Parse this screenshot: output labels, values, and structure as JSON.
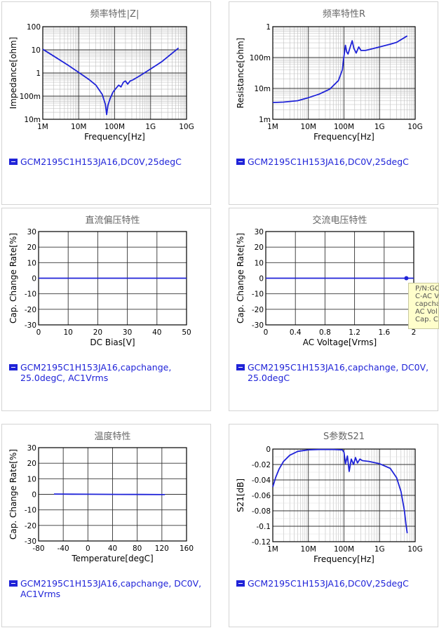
{
  "charts": [
    {
      "id": "c1",
      "title": "频率特性|Z|",
      "xlabel": "Frequency[Hz]",
      "ylabel": "Impedance[ohm]",
      "xscale": "log",
      "yscale": "log",
      "xlim": [
        1000000,
        10000000000
      ],
      "ylim": [
        0.01,
        100
      ],
      "xticks": [
        {
          "v": 1000000,
          "l": "1M"
        },
        {
          "v": 10000000,
          "l": "10M"
        },
        {
          "v": 100000000,
          "l": "100M"
        },
        {
          "v": 1000000000,
          "l": "1G"
        },
        {
          "v": 10000000000,
          "l": "10G"
        }
      ],
      "yticks": [
        {
          "v": 0.01,
          "l": "10m"
        },
        {
          "v": 0.1,
          "l": "100m"
        },
        {
          "v": 1,
          "l": "1"
        },
        {
          "v": 10,
          "l": "10"
        },
        {
          "v": 100,
          "l": "100"
        }
      ],
      "legend": "GCM2195C1H153JA16,DC0V,25degC"
    },
    {
      "id": "c2",
      "title": "频率特性R",
      "xlabel": "Frequency[Hz]",
      "ylabel": "Resistance[ohm]",
      "xscale": "log",
      "yscale": "log",
      "xlim": [
        1000000,
        10000000000
      ],
      "ylim": [
        0.001,
        1
      ],
      "xticks": [
        {
          "v": 1000000,
          "l": "1M"
        },
        {
          "v": 10000000,
          "l": "10M"
        },
        {
          "v": 100000000,
          "l": "100M"
        },
        {
          "v": 1000000000,
          "l": "1G"
        },
        {
          "v": 10000000000,
          "l": "10G"
        }
      ],
      "yticks": [
        {
          "v": 0.001,
          "l": "1m"
        },
        {
          "v": 0.01,
          "l": "10m"
        },
        {
          "v": 0.1,
          "l": "100m"
        },
        {
          "v": 1,
          "l": "1"
        }
      ],
      "legend": "GCM2195C1H153JA16,DC0V,25degC"
    },
    {
      "id": "c3",
      "title": "直流偏压特性",
      "xlabel": "DC Bias[V]",
      "ylabel": "Cap. Change Rate[%]",
      "xscale": "linear",
      "yscale": "linear",
      "xlim": [
        0,
        50
      ],
      "ylim": [
        -30,
        30
      ],
      "xticks": [
        {
          "v": 0,
          "l": "0"
        },
        {
          "v": 10,
          "l": "10"
        },
        {
          "v": 20,
          "l": "20"
        },
        {
          "v": 30,
          "l": "30"
        },
        {
          "v": 40,
          "l": "40"
        },
        {
          "v": 50,
          "l": "50"
        }
      ],
      "yticks": [
        {
          "v": -30,
          "l": "-30"
        },
        {
          "v": -20,
          "l": "-20"
        },
        {
          "v": -10,
          "l": "-10"
        },
        {
          "v": 0,
          "l": "0"
        },
        {
          "v": 10,
          "l": "10"
        },
        {
          "v": 20,
          "l": "20"
        },
        {
          "v": 30,
          "l": "30"
        }
      ],
      "legend": "GCM2195C1H153JA16,capchange, 25.0degC, AC1Vrms"
    },
    {
      "id": "c4",
      "title": "交流电压特性",
      "xlabel": "AC Voltage[Vrms]",
      "ylabel": "Cap. Change Rate[%]",
      "xscale": "linear",
      "yscale": "linear",
      "xlim": [
        0,
        2
      ],
      "ylim": [
        -30,
        30
      ],
      "xticks": [
        {
          "v": 0,
          "l": "0"
        },
        {
          "v": 0.4,
          "l": "0.4"
        },
        {
          "v": 0.8,
          "l": "0.8"
        },
        {
          "v": 1.2,
          "l": "1.2"
        },
        {
          "v": 1.6,
          "l": "1.6"
        },
        {
          "v": 2,
          "l": "2"
        }
      ],
      "yticks": [
        {
          "v": -30,
          "l": "-30"
        },
        {
          "v": -20,
          "l": "-20"
        },
        {
          "v": -10,
          "l": "-10"
        },
        {
          "v": 0,
          "l": "0"
        },
        {
          "v": 10,
          "l": "10"
        },
        {
          "v": 20,
          "l": "20"
        },
        {
          "v": 30,
          "l": "30"
        }
      ],
      "legend": "GCM2195C1H153JA16,capchange, DC0V, 25.0degC"
    },
    {
      "id": "c5",
      "title": "温度特性",
      "xlabel": "Temperature[degC]",
      "ylabel": "Cap. Change Rate[%]",
      "xscale": "linear",
      "yscale": "linear",
      "xlim": [
        -80,
        160
      ],
      "ylim": [
        -30,
        30
      ],
      "xticks": [
        {
          "v": -80,
          "l": "-80"
        },
        {
          "v": -40,
          "l": "-40"
        },
        {
          "v": 0,
          "l": "0"
        },
        {
          "v": 40,
          "l": "40"
        },
        {
          "v": 80,
          "l": "80"
        },
        {
          "v": 120,
          "l": "120"
        },
        {
          "v": 160,
          "l": "160"
        }
      ],
      "yticks": [
        {
          "v": -30,
          "l": "-30"
        },
        {
          "v": -20,
          "l": "-20"
        },
        {
          "v": -10,
          "l": "-10"
        },
        {
          "v": 0,
          "l": "0"
        },
        {
          "v": 10,
          "l": "10"
        },
        {
          "v": 20,
          "l": "20"
        },
        {
          "v": 30,
          "l": "30"
        }
      ],
      "legend": "GCM2195C1H153JA16,capchange, DC0V, AC1Vrms"
    },
    {
      "id": "c6",
      "title": "S参数S21",
      "xlabel": "Frequency[Hz]",
      "ylabel": "S21[dB]",
      "xscale": "log",
      "yscale": "linear",
      "xlim": [
        1000000,
        10000000000
      ],
      "ylim": [
        -0.12,
        0
      ],
      "xticks": [
        {
          "v": 1000000,
          "l": "1M"
        },
        {
          "v": 10000000,
          "l": "10M"
        },
        {
          "v": 100000000,
          "l": "100M"
        },
        {
          "v": 1000000000,
          "l": "1G"
        },
        {
          "v": 10000000000,
          "l": "10G"
        }
      ],
      "yticks": [
        {
          "v": -0.12,
          "l": "-0.12"
        },
        {
          "v": -0.1,
          "l": "-0.1"
        },
        {
          "v": -0.08,
          "l": "-0.08"
        },
        {
          "v": -0.06,
          "l": "-0.06"
        },
        {
          "v": -0.04,
          "l": "-0.04"
        },
        {
          "v": -0.02,
          "l": "-0.02"
        },
        {
          "v": 0,
          "l": "0"
        }
      ],
      "legend": "GCM2195C1H153JA16,DC0V,25degC"
    }
  ],
  "tooltip": [
    "P/N:GC",
    "C-AC V",
    "capcha",
    "AC Vol",
    "Cap. C"
  ],
  "colors": {
    "series": "#1f23d8",
    "grid": "#bdbdbd",
    "frame": "#000000",
    "tooltip_bg": "#fffecb"
  },
  "chart_data": [
    {
      "type": "line",
      "title": "频率特性|Z|",
      "xlabel": "Frequency[Hz]",
      "ylabel": "Impedance[ohm]",
      "xscale": "log",
      "yscale": "log",
      "xlim": [
        1000000,
        10000000000
      ],
      "ylim": [
        0.01,
        100
      ],
      "grid": true,
      "series": [
        {
          "name": "GCM2195C1H153JA16,DC0V,25degC",
          "x": [
            1000000,
            2000000,
            5000000,
            10000000,
            20000000,
            30000000,
            45000000,
            55000000,
            60000000,
            65000000,
            75000000,
            90000000,
            110000000,
            130000000,
            150000000,
            175000000,
            200000000,
            230000000,
            270000000,
            320000000,
            500000000,
            1000000000,
            2000000000,
            6000000000
          ],
          "y": [
            10.6,
            5.4,
            2.2,
            1.05,
            0.5,
            0.3,
            0.12,
            0.045,
            0.016,
            0.04,
            0.08,
            0.15,
            0.22,
            0.3,
            0.25,
            0.4,
            0.45,
            0.33,
            0.45,
            0.5,
            0.75,
            1.5,
            3.0,
            12.0
          ]
        }
      ]
    },
    {
      "type": "line",
      "title": "频率特性R",
      "xlabel": "Frequency[Hz]",
      "ylabel": "Resistance[ohm]",
      "xscale": "log",
      "yscale": "log",
      "xlim": [
        1000000,
        10000000000
      ],
      "ylim": [
        0.001,
        1
      ],
      "grid": true,
      "series": [
        {
          "name": "GCM2195C1H153JA16,DC0V,25degC",
          "x": [
            1000000,
            2000000,
            5000000,
            10000000,
            20000000,
            40000000,
            70000000,
            90000000,
            100000000,
            110000000,
            120000000,
            130000000,
            150000000,
            170000000,
            190000000,
            220000000,
            260000000,
            300000000,
            400000000,
            600000000,
            1000000000,
            2000000000,
            3000000000,
            6000000000
          ],
          "y": [
            0.0035,
            0.0036,
            0.004,
            0.005,
            0.0065,
            0.0095,
            0.018,
            0.04,
            0.11,
            0.25,
            0.15,
            0.13,
            0.22,
            0.35,
            0.2,
            0.14,
            0.22,
            0.17,
            0.17,
            0.19,
            0.22,
            0.27,
            0.31,
            0.5
          ]
        }
      ]
    },
    {
      "type": "line",
      "title": "直流偏压特性",
      "xlabel": "DC Bias[V]",
      "ylabel": "Cap. Change Rate[%]",
      "xlim": [
        0,
        50
      ],
      "ylim": [
        -30,
        30
      ],
      "grid": true,
      "series": [
        {
          "name": "GCM2195C1H153JA16,capchange, 25.0degC, AC1Vrms",
          "x": [
            0,
            10,
            20,
            30,
            40,
            50
          ],
          "y": [
            0,
            0,
            0,
            0,
            0,
            0
          ]
        }
      ]
    },
    {
      "type": "line",
      "title": "交流电压特性",
      "xlabel": "AC Voltage[Vrms]",
      "ylabel": "Cap. Change Rate[%]",
      "xlim": [
        0,
        2
      ],
      "ylim": [
        -30,
        30
      ],
      "grid": true,
      "series": [
        {
          "name": "GCM2195C1H153JA16,capchange, DC0V, 25.0degC",
          "x": [
            0,
            0.5,
            1.0,
            1.5,
            1.9,
            2.0
          ],
          "y": [
            0,
            0,
            0,
            0,
            0,
            0
          ]
        }
      ],
      "marker": {
        "x": 1.9,
        "y": 0
      }
    },
    {
      "type": "line",
      "title": "温度特性",
      "xlabel": "Temperature[degC]",
      "ylabel": "Cap. Change Rate[%]",
      "xlim": [
        -80,
        160
      ],
      "ylim": [
        -30,
        30
      ],
      "grid": true,
      "series": [
        {
          "name": "GCM2195C1H153JA16,capchange, DC0V, AC1Vrms",
          "x": [
            -55,
            -25,
            0,
            25,
            50,
            85,
            125
          ],
          "y": [
            0.2,
            0.1,
            0.05,
            0,
            -0.05,
            -0.1,
            -0.2
          ]
        }
      ]
    },
    {
      "type": "line",
      "title": "S参数S21",
      "xlabel": "Frequency[Hz]",
      "ylabel": "S21[dB]",
      "xscale": "log",
      "xlim": [
        1000000,
        10000000000
      ],
      "ylim": [
        -0.12,
        0
      ],
      "grid": true,
      "series": [
        {
          "name": "GCM2195C1H153JA16,DC0V,25degC",
          "x": [
            1000000,
            1200000,
            1500000,
            2000000,
            3000000,
            5000000,
            10000000,
            20000000,
            50000000,
            90000000,
            100000000,
            110000000,
            125000000,
            140000000,
            160000000,
            185000000,
            210000000,
            240000000,
            280000000,
            330000000,
            500000000,
            1000000000,
            2000000000,
            3000000000,
            4000000000,
            5000000000,
            5500000000,
            6000000000
          ],
          "y": [
            -0.049,
            -0.037,
            -0.026,
            -0.016,
            -0.008,
            -0.003,
            -0.001,
            -0.0005,
            -0.0005,
            -0.001,
            -0.004,
            -0.019,
            -0.009,
            -0.029,
            -0.013,
            -0.02,
            -0.011,
            -0.018,
            -0.013,
            -0.015,
            -0.016,
            -0.019,
            -0.025,
            -0.037,
            -0.055,
            -0.08,
            -0.097,
            -0.109
          ]
        }
      ]
    }
  ]
}
